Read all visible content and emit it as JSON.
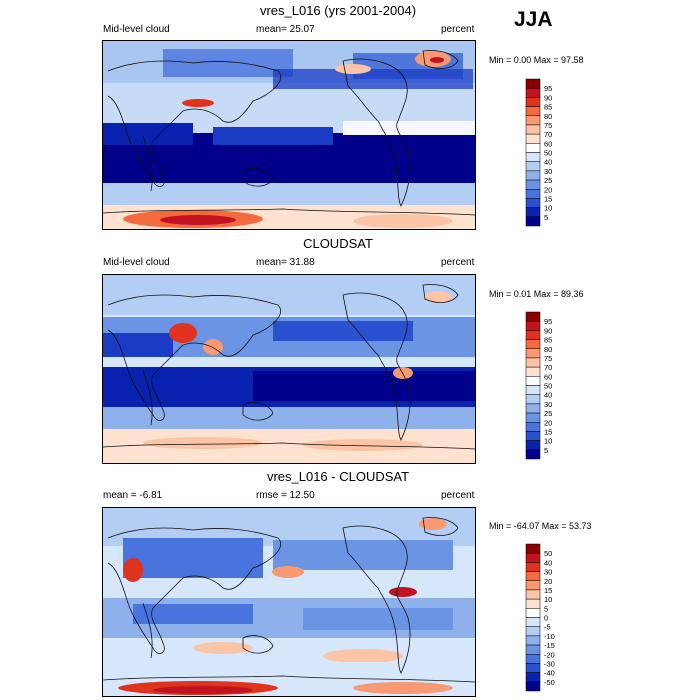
{
  "season": "JJA",
  "panels": [
    {
      "title": "vres_L016 (yrs 2001-2004)",
      "left_label": "Mid-level cloud",
      "center_label": "mean=  25.07",
      "right_label": "percent",
      "minmax": "Min =   0.00 Max =  97.58",
      "colorbar": {
        "labels": [
          "95",
          "90",
          "85",
          "80",
          "75",
          "70",
          "60",
          "50",
          "40",
          "30",
          "25",
          "20",
          "15",
          "10",
          "5"
        ],
        "colors": [
          "#8b0000",
          "#c1121f",
          "#e0321c",
          "#f26a3d",
          "#f79a73",
          "#fbc4a7",
          "#fde2d0",
          "#ffffff",
          "#d7e7fb",
          "#b3cdf4",
          "#8eb1ec",
          "#6b94e4",
          "#4a74dd",
          "#2a52d0",
          "#0a22b0",
          "#00008b"
        ]
      }
    },
    {
      "title": "CLOUDSAT",
      "left_label": "Mid-level cloud",
      "center_label": "mean=  31.88",
      "right_label": "percent",
      "minmax": "Min =   0.01 Max =  89.36",
      "colorbar": {
        "labels": [
          "95",
          "90",
          "85",
          "80",
          "75",
          "70",
          "60",
          "50",
          "40",
          "30",
          "25",
          "20",
          "15",
          "10",
          "5"
        ],
        "colors": [
          "#8b0000",
          "#c1121f",
          "#e0321c",
          "#f26a3d",
          "#f79a73",
          "#fbc4a7",
          "#fde2d0",
          "#ffffff",
          "#d7e7fb",
          "#b3cdf4",
          "#8eb1ec",
          "#6b94e4",
          "#4a74dd",
          "#2a52d0",
          "#0a22b0",
          "#00008b"
        ]
      }
    },
    {
      "title": "vres_L016 - CLOUDSAT",
      "left_label": "mean =  -6.81",
      "center_label": "rmse =  12.50",
      "right_label": "percent",
      "minmax": "Min = -64.07 Max =  53.73",
      "colorbar": {
        "labels": [
          "50",
          "40",
          "30",
          "20",
          "15",
          "10",
          "5",
          "0",
          "-5",
          "-10",
          "-15",
          "-20",
          "-30",
          "-40",
          "-50"
        ],
        "colors": [
          "#8b0000",
          "#c1121f",
          "#e0321c",
          "#f26a3d",
          "#f79a73",
          "#fbc4a7",
          "#fde2d0",
          "#ffffff",
          "#d7e7fb",
          "#b3cdf4",
          "#8eb1ec",
          "#6b94e4",
          "#4a74dd",
          "#2a52d0",
          "#0a22b0",
          "#00008b"
        ]
      }
    }
  ]
}
